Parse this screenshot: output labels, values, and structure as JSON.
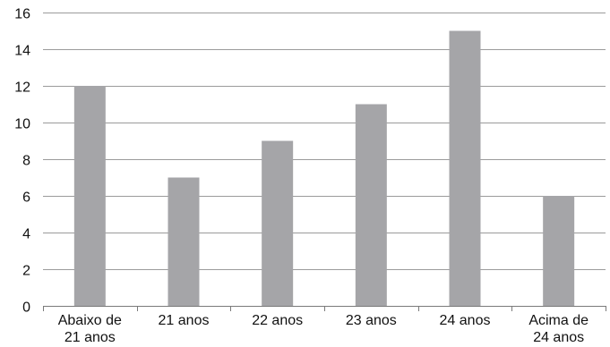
{
  "chart_data": {
    "type": "bar",
    "title": "",
    "xlabel": "",
    "ylabel": "",
    "categories": [
      [
        "Abaixo de",
        "21 anos"
      ],
      [
        "21 anos"
      ],
      [
        "22 anos"
      ],
      [
        "23 anos"
      ],
      [
        "24 anos"
      ],
      [
        "Acima de",
        "24 anos"
      ]
    ],
    "values": [
      12,
      7,
      9,
      11,
      15,
      6
    ],
    "ylim": [
      0,
      16
    ],
    "yticks": [
      0,
      2,
      4,
      6,
      8,
      10,
      12,
      14,
      16
    ],
    "grid": true,
    "legend": "none",
    "colors": {
      "bar": "#a5a5a8",
      "grid": "#9b9b9b",
      "axis": "#7a7a7a",
      "text": "#111111"
    }
  }
}
